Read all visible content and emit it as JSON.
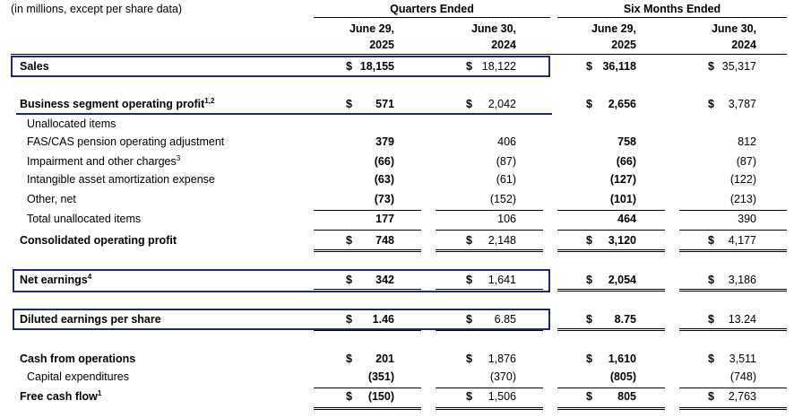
{
  "header": {
    "units_note": "(in millions, except per share data)",
    "group_quarters": "Quarters Ended",
    "group_six_months": "Six Months Ended",
    "columns": [
      {
        "line1": "June 29,",
        "line2": "2025"
      },
      {
        "line1": "June 30,",
        "line2": "2024"
      },
      {
        "line1": "June 29,",
        "line2": "2025"
      },
      {
        "line1": "June 30,",
        "line2": "2024"
      }
    ]
  },
  "rows": [
    {
      "label": "Sales",
      "sup": "",
      "dollar": "$",
      "values": [
        "18,155",
        "18,122",
        "36,118",
        "35,317"
      ]
    },
    {
      "label": "Business segment operating profit",
      "sup": "1,2",
      "dollar": "$",
      "values": [
        "571",
        "2,042",
        "2,656",
        "3,787"
      ]
    },
    {
      "label": "Unallocated items",
      "sup": "",
      "dollar": "",
      "values": [
        "",
        "",
        "",
        ""
      ]
    },
    {
      "label": "FAS/CAS pension operating adjustment",
      "sup": "",
      "dollar": "",
      "values": [
        "379",
        "406",
        "758",
        "812"
      ]
    },
    {
      "label": "Impairment and other charges",
      "sup": "3",
      "dollar": "",
      "values": [
        "(66)",
        "(87)",
        "(66)",
        "(87)"
      ]
    },
    {
      "label": "Intangible asset amortization expense",
      "sup": "",
      "dollar": "",
      "values": [
        "(63)",
        "(61)",
        "(127)",
        "(122)"
      ]
    },
    {
      "label": "Other, net",
      "sup": "",
      "dollar": "",
      "values": [
        "(73)",
        "(152)",
        "(101)",
        "(213)"
      ]
    },
    {
      "label": "Total unallocated items",
      "sup": "",
      "dollar": "",
      "values": [
        "177",
        "106",
        "464",
        "390"
      ]
    },
    {
      "label": "Consolidated operating profit",
      "sup": "",
      "dollar": "$",
      "values": [
        "748",
        "2,148",
        "3,120",
        "4,177"
      ]
    },
    {
      "label": "Net earnings",
      "sup": "4",
      "dollar": "$",
      "values": [
        "342",
        "1,641",
        "2,054",
        "3,186"
      ]
    },
    {
      "label": "Diluted earnings per share",
      "sup": "",
      "dollar": "$",
      "values": [
        "1.46",
        "6.85",
        "8.75",
        "13.24"
      ]
    },
    {
      "label": "Cash from operations",
      "sup": "",
      "dollar": "$",
      "values": [
        "201",
        "1,876",
        "1,610",
        "3,511"
      ]
    },
    {
      "label": "Capital expenditures",
      "sup": "",
      "dollar": "",
      "values": [
        "(351)",
        "(370)",
        "(805)",
        "(748)"
      ]
    },
    {
      "label": "Free cash flow",
      "sup": "1",
      "dollar": "$",
      "values": [
        "(150)",
        "1,506",
        "805",
        "2,763"
      ]
    }
  ]
}
